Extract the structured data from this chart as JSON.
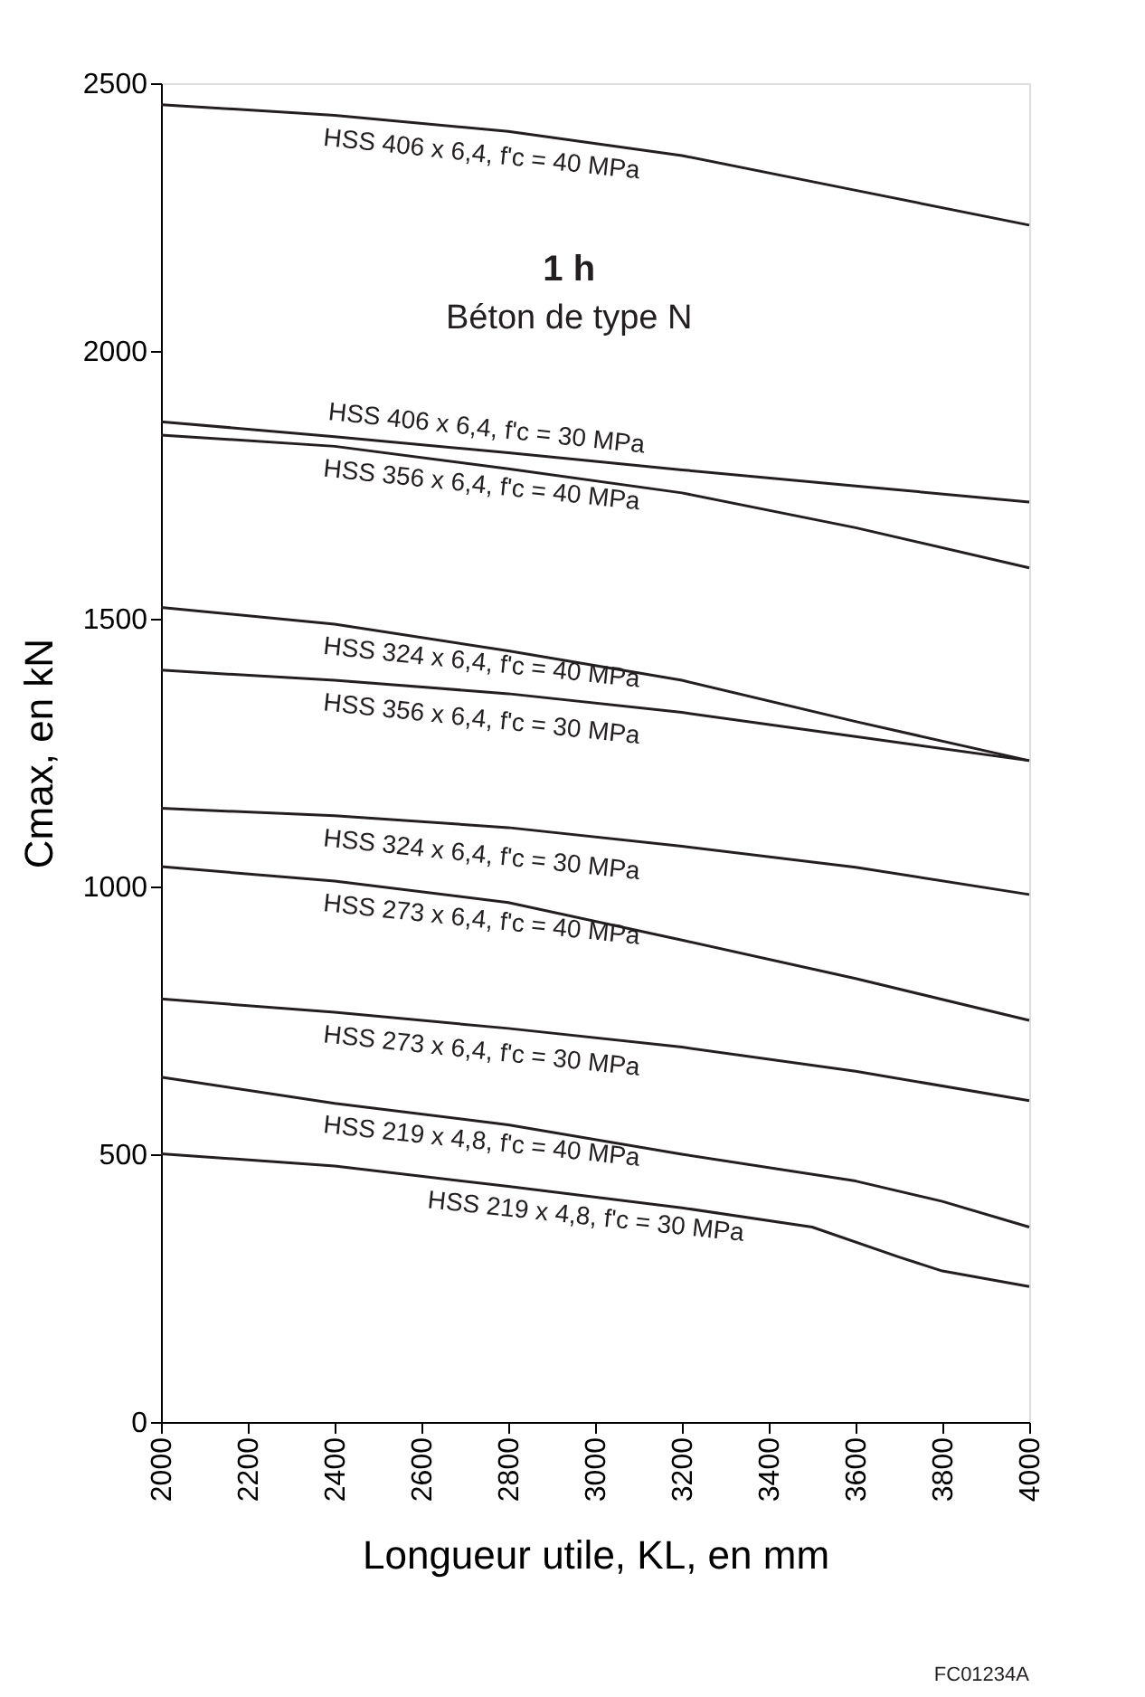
{
  "chart_data": {
    "type": "line",
    "title": "1 h",
    "subtitle": "Béton de type N",
    "xlabel": "Longueur utile, KL, en mm",
    "ylabel": "Cmax, en kN",
    "xlim": [
      2000,
      4000
    ],
    "xticks": [
      2000,
      2200,
      2400,
      2600,
      2800,
      3000,
      3200,
      3400,
      3600,
      3800,
      4000
    ],
    "ylim": [
      0,
      2500
    ],
    "yticks": [
      0,
      500,
      1000,
      1500,
      2000,
      2500
    ],
    "grid": false,
    "marker": "none",
    "line_style": "solid",
    "annotations": [
      "FC01234A"
    ],
    "series": [
      {
        "name": "HSS 406 x 6,4, f'c = 40 MPa",
        "color": "#231f20",
        "x": [
          2000,
          2400,
          2800,
          3200,
          3600,
          4000
        ],
        "values": [
          2460,
          2440,
          2410,
          2365,
          2300,
          2235
        ]
      },
      {
        "name": "HSS 406 x 6,4, f'c = 30 MPa",
        "color": "#231f20",
        "x": [
          2000,
          2400,
          2800,
          3200,
          3600,
          4000
        ],
        "values": [
          1868,
          1840,
          1810,
          1778,
          1748,
          1718
        ]
      },
      {
        "name": "HSS 356 x 6,4, f'c = 40 MPa",
        "color": "#231f20",
        "x": [
          2000,
          2400,
          2800,
          3200,
          3600,
          4000
        ],
        "values": [
          1843,
          1822,
          1780,
          1735,
          1670,
          1595
        ]
      },
      {
        "name": "HSS 324 x 6,4, f'c = 40 MPa",
        "color": "#231f20",
        "x": [
          2000,
          2400,
          2800,
          3200,
          3600,
          4000
        ],
        "values": [
          1521,
          1490,
          1440,
          1385,
          1308,
          1235
        ]
      },
      {
        "name": "HSS 356 x 6,4, f'c = 30 MPa",
        "color": "#231f20",
        "x": [
          2000,
          2400,
          2800,
          3200,
          3600,
          4000
        ],
        "values": [
          1404,
          1385,
          1360,
          1325,
          1280,
          1235
        ]
      },
      {
        "name": "HSS 324 x 6,4, f'c = 30 MPa",
        "color": "#231f20",
        "x": [
          2000,
          2400,
          2800,
          3200,
          3600,
          4000
        ],
        "values": [
          1146,
          1132,
          1110,
          1075,
          1036,
          985
        ]
      },
      {
        "name": "HSS 273 x 6,4, f'c = 40 MPa",
        "color": "#231f20",
        "x": [
          2000,
          2400,
          2800,
          3200,
          3600,
          4000
        ],
        "values": [
          1037,
          1010,
          970,
          900,
          828,
          750
        ]
      },
      {
        "name": "HSS 273 x 6,4, f'c = 30 MPa",
        "color": "#231f20",
        "x": [
          2000,
          2400,
          2800,
          3200,
          3600,
          4000
        ],
        "values": [
          790,
          765,
          735,
          700,
          655,
          600
        ]
      },
      {
        "name": "HSS 219 x 4,8, f'c = 40 MPa",
        "color": "#231f20",
        "x": [
          2000,
          2400,
          2800,
          3200,
          3600,
          3800,
          4000
        ],
        "values": [
          644,
          595,
          555,
          500,
          450,
          412,
          364
        ]
      },
      {
        "name": "HSS 219 x 4,8, f'c = 30 MPa",
        "color": "#231f20",
        "x": [
          2000,
          2400,
          2800,
          3200,
          3500,
          3700,
          3800,
          4000
        ],
        "values": [
          501,
          478,
          440,
          400,
          364,
          308,
          282,
          253
        ]
      }
    ]
  }
}
